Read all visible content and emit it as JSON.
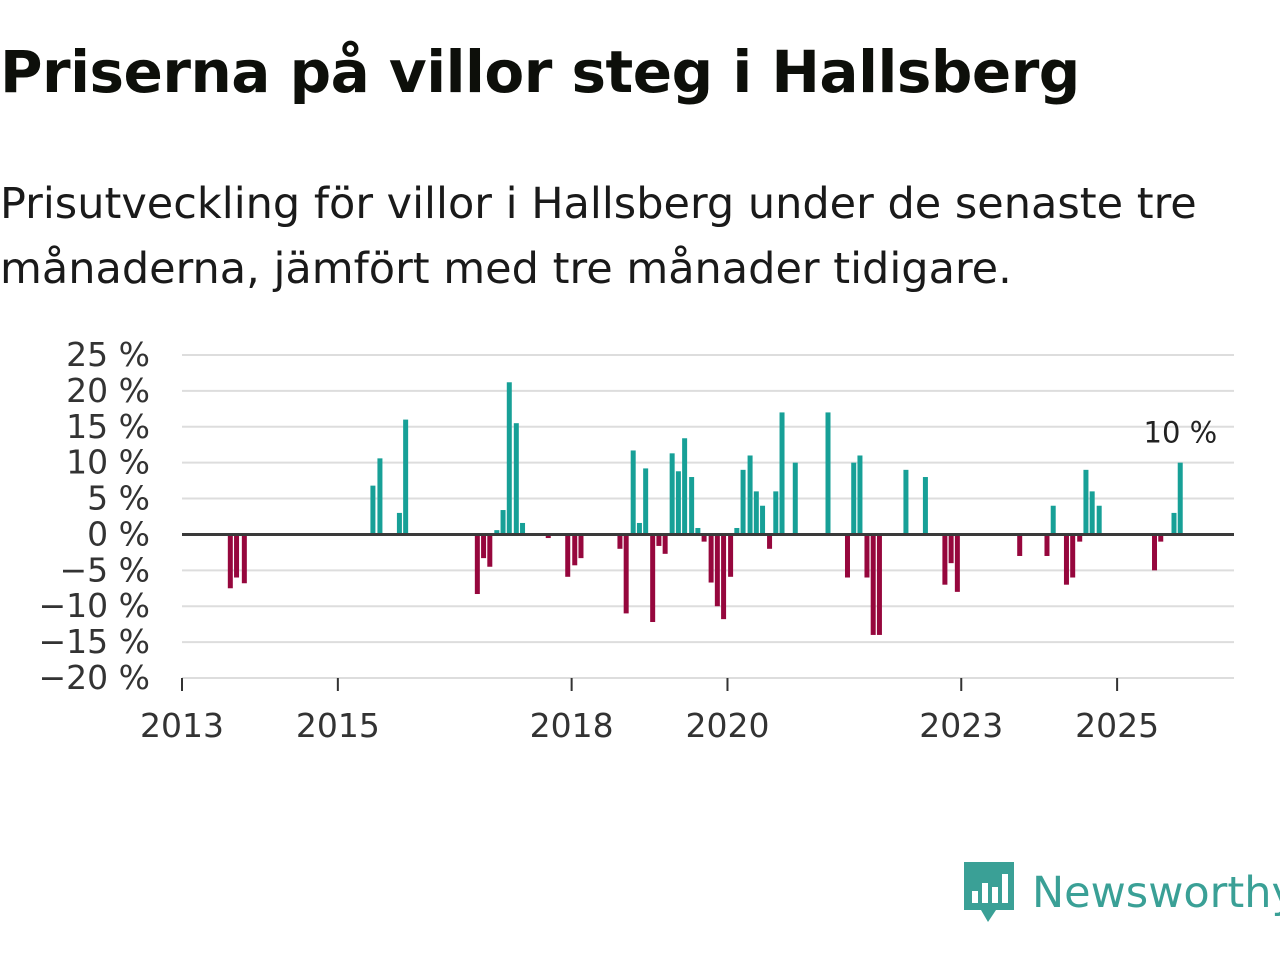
{
  "title": "Priserna på villor steg i Hallsberg",
  "subtitle": "Prisutveckling för villor i Hallsberg under de senaste tre månaderna, jämfört med tre månader tidigare.",
  "brand": {
    "name": "Newsworthy",
    "icon": "newsworthy-chart-logo-icon"
  },
  "colors": {
    "positive": "#17a097",
    "negative": "#96073d",
    "grid": "#dddddd",
    "zero": "#3a3a3a",
    "brand": "#3aa096"
  },
  "chart_data": {
    "type": "bar",
    "title": "Priserna på villor steg i Hallsberg",
    "xlabel": "",
    "ylabel": "",
    "unit": "%",
    "ylim": [
      -20,
      25
    ],
    "yticks": [
      25,
      20,
      15,
      10,
      5,
      0,
      -5,
      -10,
      -15,
      -20
    ],
    "ytick_labels": [
      "25 %",
      "20 %",
      "15 %",
      "10 %",
      "5 %",
      "0 %",
      "−5 %",
      "−10 %",
      "−15 %",
      "−20 %"
    ],
    "xlim": [
      2013.0,
      2026.5
    ],
    "xticks": [
      2013,
      2015,
      2018,
      2020,
      2023,
      2025
    ],
    "xtick_labels": [
      "2013",
      "2015",
      "2018",
      "2020",
      "2023",
      "2025"
    ],
    "last_value_label": "10 %",
    "grid": true,
    "series": [
      {
        "name": "Prisutveckling",
        "points": [
          [
            2013.62,
            -7.5
          ],
          [
            2013.7,
            -6.0
          ],
          [
            2013.8,
            -6.8
          ],
          [
            2015.45,
            6.8
          ],
          [
            2015.54,
            10.6
          ],
          [
            2015.79,
            3.0
          ],
          [
            2015.87,
            16.0
          ],
          [
            2016.79,
            -8.3
          ],
          [
            2016.87,
            -3.3
          ],
          [
            2016.95,
            -4.5
          ],
          [
            2017.04,
            0.6
          ],
          [
            2017.12,
            3.4
          ],
          [
            2017.2,
            21.2
          ],
          [
            2017.29,
            15.5
          ],
          [
            2017.37,
            1.6
          ],
          [
            2017.7,
            -0.5
          ],
          [
            2017.95,
            -5.9
          ],
          [
            2018.04,
            -4.3
          ],
          [
            2018.12,
            -3.3
          ],
          [
            2018.62,
            -2.0
          ],
          [
            2018.7,
            -11.0
          ],
          [
            2018.79,
            11.7
          ],
          [
            2018.87,
            1.6
          ],
          [
            2018.95,
            9.2
          ],
          [
            2019.04,
            -12.2
          ],
          [
            2019.12,
            -1.6
          ],
          [
            2019.2,
            -2.7
          ],
          [
            2019.29,
            11.3
          ],
          [
            2019.37,
            8.8
          ],
          [
            2019.45,
            13.4
          ],
          [
            2019.54,
            8.0
          ],
          [
            2019.62,
            0.9
          ],
          [
            2019.7,
            -1.0
          ],
          [
            2019.79,
            -6.7
          ],
          [
            2019.87,
            -10.0
          ],
          [
            2019.95,
            -11.8
          ],
          [
            2020.04,
            -5.9
          ],
          [
            2020.12,
            0.9
          ],
          [
            2020.2,
            9.0
          ],
          [
            2020.29,
            11.0
          ],
          [
            2020.37,
            6.0
          ],
          [
            2020.45,
            4.0
          ],
          [
            2020.54,
            -2.0
          ],
          [
            2020.62,
            6.0
          ],
          [
            2020.7,
            17.0
          ],
          [
            2020.87,
            10.0
          ],
          [
            2021.29,
            17.0
          ],
          [
            2021.54,
            -6.0
          ],
          [
            2021.62,
            10.0
          ],
          [
            2021.7,
            11.0
          ],
          [
            2021.79,
            -6.0
          ],
          [
            2021.87,
            -14.0
          ],
          [
            2021.95,
            -14.0
          ],
          [
            2022.29,
            9.0
          ],
          [
            2022.54,
            8.0
          ],
          [
            2022.79,
            -7.0
          ],
          [
            2022.87,
            -4.0
          ],
          [
            2022.95,
            -8.0
          ],
          [
            2023.75,
            -3.0
          ],
          [
            2024.1,
            -3.0
          ],
          [
            2024.18,
            4.0
          ],
          [
            2024.35,
            -7.0
          ],
          [
            2024.43,
            -6.0
          ],
          [
            2024.52,
            -1.0
          ],
          [
            2024.6,
            9.0
          ],
          [
            2024.68,
            6.0
          ],
          [
            2024.77,
            4.0
          ],
          [
            2025.48,
            -5.0
          ],
          [
            2025.56,
            -1.0
          ],
          [
            2025.73,
            3.0
          ],
          [
            2025.81,
            10.0
          ]
        ]
      }
    ]
  }
}
